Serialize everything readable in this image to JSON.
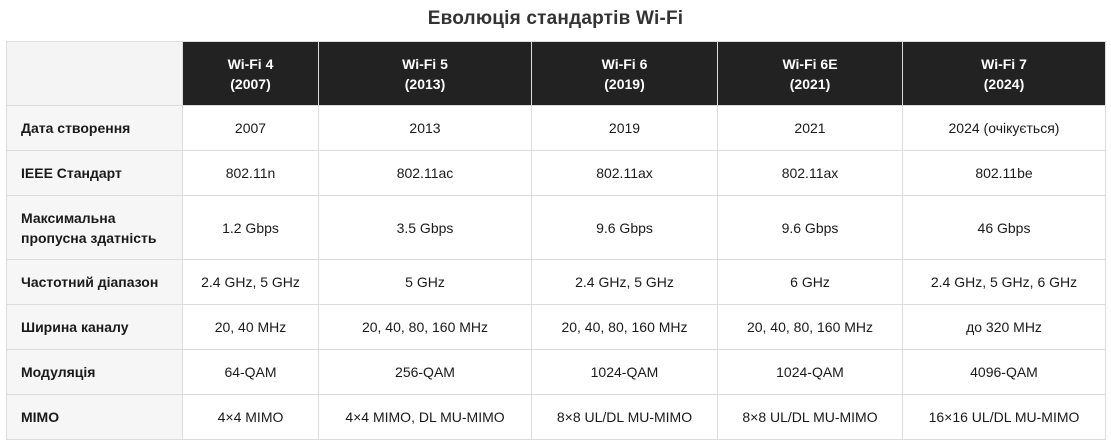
{
  "title": "Еволюція стандартів Wi-Fi",
  "columns": [
    {
      "name": "Wi-Fi 4",
      "year": "(2007)"
    },
    {
      "name": "Wi-Fi 5",
      "year": "(2013)"
    },
    {
      "name": "Wi-Fi 6",
      "year": "(2019)"
    },
    {
      "name": "Wi-Fi 6E",
      "year": "(2021)"
    },
    {
      "name": "Wi-Fi 7",
      "year": "(2024)"
    }
  ],
  "rows": [
    {
      "label": "Дата створення",
      "values": [
        "2007",
        "2013",
        "2019",
        "2021",
        "2024 (очікується)"
      ]
    },
    {
      "label": "IEEE Стандарт",
      "values": [
        "802.11n",
        "802.11ac",
        "802.11ax",
        "802.11ax",
        "802.11be"
      ]
    },
    {
      "label_line1": "Максимальна",
      "label_line2": "пропусна здатність",
      "values": [
        "1.2 Gbps",
        "3.5 Gbps",
        "9.6 Gbps",
        "9.6 Gbps",
        "46 Gbps"
      ]
    },
    {
      "label": "Частотний діапазон",
      "values": [
        "2.4 GHz, 5 GHz",
        "5 GHz",
        "2.4 GHz, 5 GHz",
        "6 GHz",
        "2.4 GHz, 5 GHz, 6 GHz"
      ]
    },
    {
      "label": "Ширина каналу",
      "values": [
        "20, 40 MHz",
        "20, 40, 80, 160 MHz",
        "20, 40, 80, 160 MHz",
        "20, 40, 80, 160 MHz",
        "до 320 MHz"
      ]
    },
    {
      "label": "Модуляція",
      "values": [
        "64-QAM",
        "256-QAM",
        "1024-QAM",
        "1024-QAM",
        "4096-QAM"
      ]
    },
    {
      "label": "MIMO",
      "values": [
        "4×4 MIMO",
        "4×4 MIMO, DL MU-MIMO",
        "8×8 UL/DL MU-MIMO",
        "8×8 UL/DL MU-MIMO",
        "16×16 UL/DL MU-MIMO"
      ]
    }
  ],
  "colors": {
    "header_bg": "#222222",
    "header_text": "#ffffff",
    "row_label_bg": "#f6f6f6",
    "border": "#dcdcdc"
  }
}
